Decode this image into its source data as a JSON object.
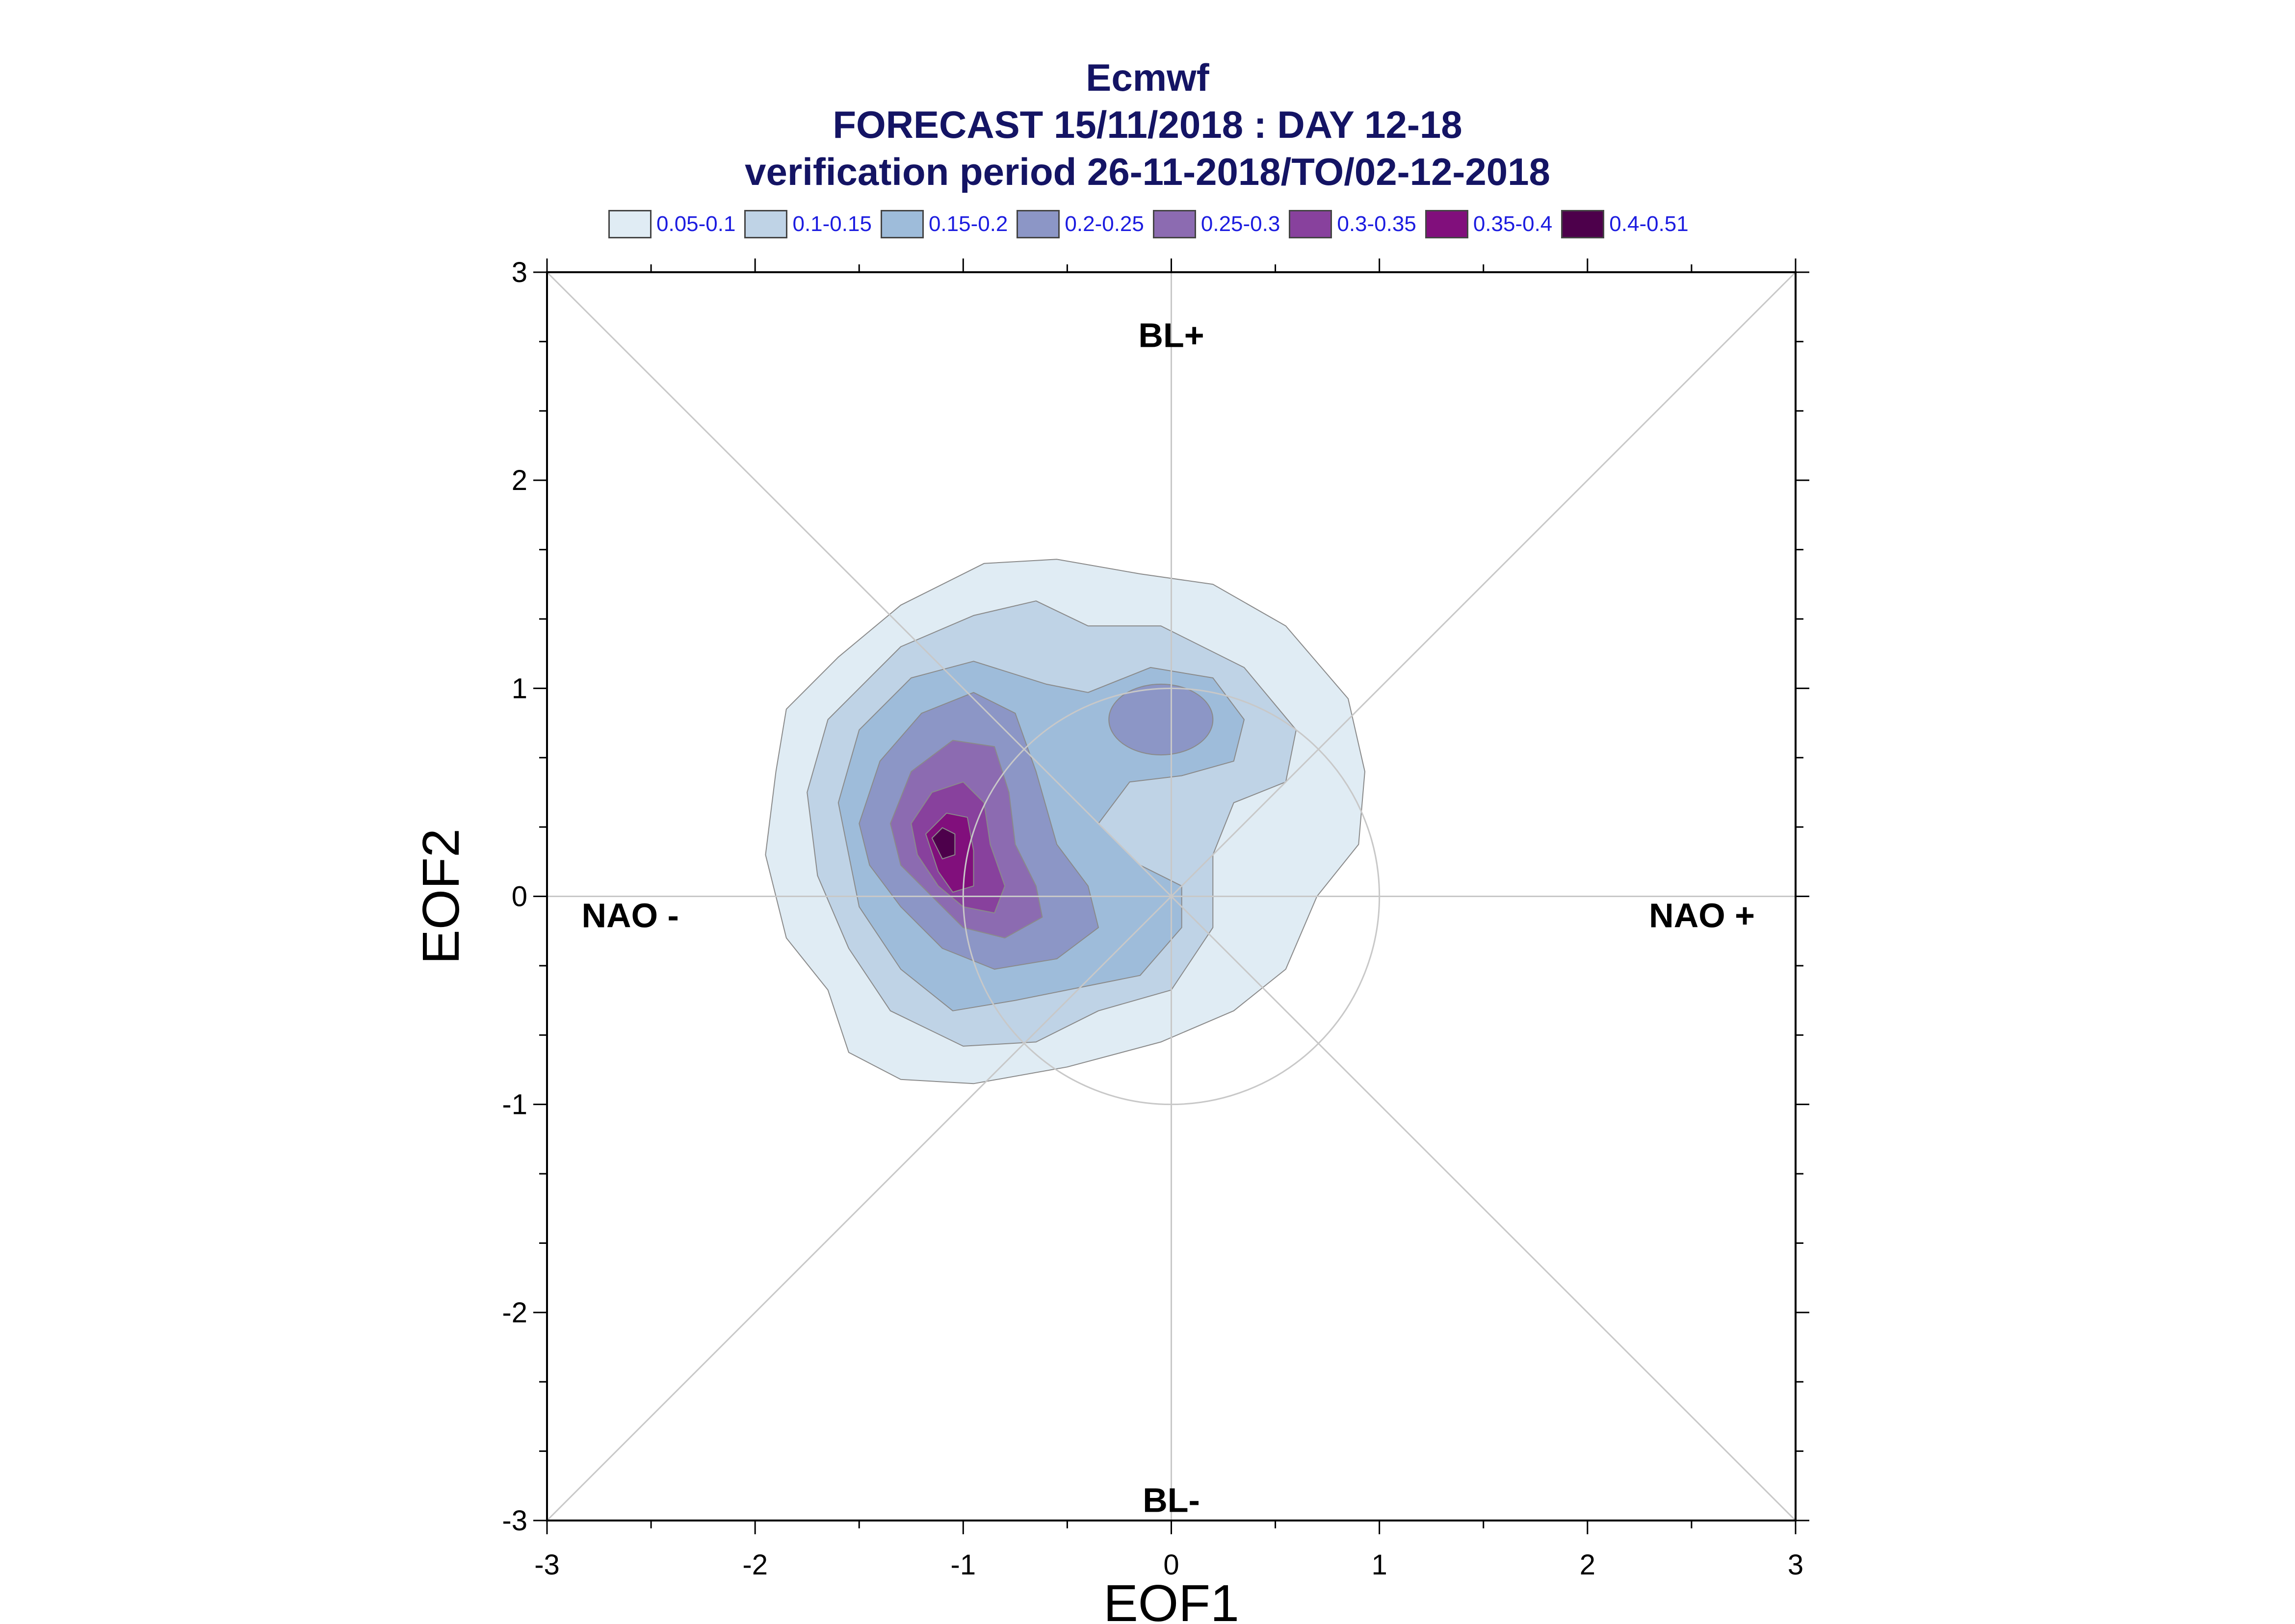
{
  "chart_data": {
    "type": "contour",
    "title": "Ecmwf",
    "subtitle": "FORECAST 15/11/2018 : DAY 12-18",
    "subtitle2": "verification period 26-11-2018/TO/02-12-2018",
    "xlabel": "EOF1",
    "ylabel": "EOF2",
    "xlim": [
      -3,
      3
    ],
    "ylim": [
      -3,
      3
    ],
    "x_ticks": [
      "-3",
      "-2",
      "-1",
      "0",
      "1",
      "2",
      "3"
    ],
    "y_ticks": [
      "-3",
      "-2",
      "-1",
      "0",
      "1",
      "2",
      "3"
    ],
    "regime_labels": {
      "top": "BL+",
      "bottom": "BL-",
      "left": "NAO -",
      "right": "NAO +"
    },
    "legend": [
      {
        "label": "0.05-0.1",
        "color": "#e0ecf4"
      },
      {
        "label": "0.1-0.15",
        "color": "#bfd3e6"
      },
      {
        "label": "0.15-0.2",
        "color": "#9ebcda"
      },
      {
        "label": "0.2-0.25",
        "color": "#8c96c6"
      },
      {
        "label": "0.25-0.3",
        "color": "#8c6bb1"
      },
      {
        "label": "0.3-0.35",
        "color": "#88419d"
      },
      {
        "label": "0.35-0.4",
        "color": "#810f7c"
      },
      {
        "label": "0.4-0.51",
        "color": "#4d004b"
      }
    ],
    "density_maximum": {
      "x": -1.1,
      "y": 0.25,
      "level": "0.4-0.51"
    },
    "secondary_maximum": {
      "x": -0.05,
      "y": 0.85,
      "level": "0.2-0.25"
    },
    "reference_circle": {
      "center": [
        0,
        0
      ],
      "radius": 1
    }
  }
}
